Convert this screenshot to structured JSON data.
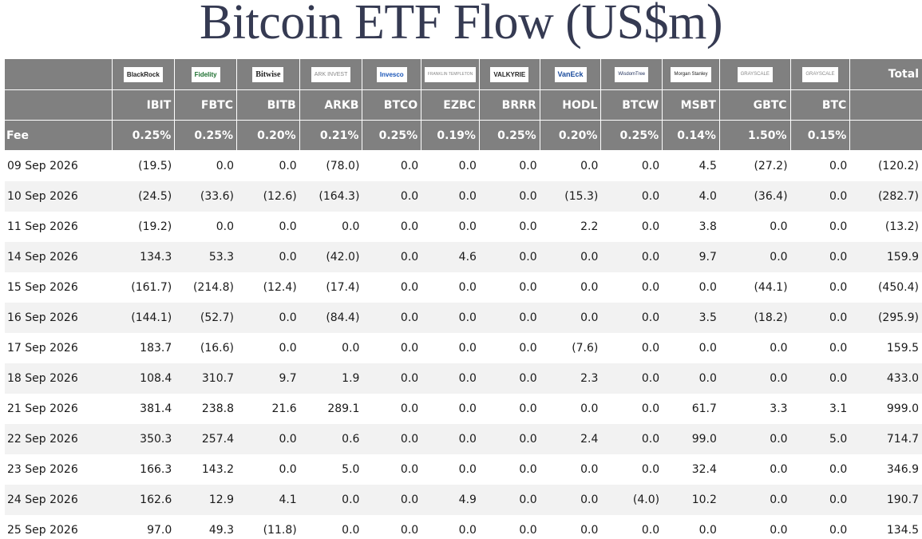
{
  "title": "Bitcoin ETF Flow (US$m)",
  "columns": [
    {
      "key": "ibit",
      "logo": "BlackRock",
      "ticker": "IBIT",
      "fee": "0.25%"
    },
    {
      "key": "fbtc",
      "logo": "Fidelity",
      "ticker": "FBTC",
      "fee": "0.25%"
    },
    {
      "key": "bitb",
      "logo": "Bitwise",
      "ticker": "BITB",
      "fee": "0.20%"
    },
    {
      "key": "arkb",
      "logo": "ARK INVEST",
      "ticker": "ARKB",
      "fee": "0.21%"
    },
    {
      "key": "btco",
      "logo": "Invesco",
      "ticker": "BTCO",
      "fee": "0.25%"
    },
    {
      "key": "ezbc",
      "logo": "FRANKLIN TEMPLETON",
      "ticker": "EZBC",
      "fee": "0.19%"
    },
    {
      "key": "brrr",
      "logo": "VALKYRIE",
      "ticker": "BRRR",
      "fee": "0.25%"
    },
    {
      "key": "hodl",
      "logo": "VanEck",
      "ticker": "HODL",
      "fee": "0.20%"
    },
    {
      "key": "btcw",
      "logo": "WisdomTree",
      "ticker": "BTCW",
      "fee": "0.25%"
    },
    {
      "key": "msbt",
      "logo": "Morgan Stanley",
      "ticker": "MSBT",
      "fee": "0.14%"
    },
    {
      "key": "gbtc",
      "logo": "GRAYSCALE",
      "ticker": "GBTC",
      "fee": "1.50%"
    },
    {
      "key": "btc",
      "logo": "GRAYSCALE",
      "ticker": "BTC",
      "fee": "0.15%"
    }
  ],
  "total_label": "Total",
  "fee_label": "Fee",
  "rows": [
    {
      "date": "09 Sep 2026",
      "values": [
        "(19.5)",
        "0.0",
        "0.0",
        "(78.0)",
        "0.0",
        "0.0",
        "0.0",
        "0.0",
        "0.0",
        "4.5",
        "(27.2)",
        "0.0"
      ],
      "total": "(120.2)"
    },
    {
      "date": "10 Sep 2026",
      "values": [
        "(24.5)",
        "(33.6)",
        "(12.6)",
        "(164.3)",
        "0.0",
        "0.0",
        "0.0",
        "(15.3)",
        "0.0",
        "4.0",
        "(36.4)",
        "0.0"
      ],
      "total": "(282.7)"
    },
    {
      "date": "11 Sep 2026",
      "values": [
        "(19.2)",
        "0.0",
        "0.0",
        "0.0",
        "0.0",
        "0.0",
        "0.0",
        "2.2",
        "0.0",
        "3.8",
        "0.0",
        "0.0"
      ],
      "total": "(13.2)"
    },
    {
      "date": "14 Sep 2026",
      "values": [
        "134.3",
        "53.3",
        "0.0",
        "(42.0)",
        "0.0",
        "4.6",
        "0.0",
        "0.0",
        "0.0",
        "9.7",
        "0.0",
        "0.0"
      ],
      "total": "159.9"
    },
    {
      "date": "15 Sep 2026",
      "values": [
        "(161.7)",
        "(214.8)",
        "(12.4)",
        "(17.4)",
        "0.0",
        "0.0",
        "0.0",
        "0.0",
        "0.0",
        "0.0",
        "(44.1)",
        "0.0"
      ],
      "total": "(450.4)"
    },
    {
      "date": "16 Sep 2026",
      "values": [
        "(144.1)",
        "(52.7)",
        "0.0",
        "(84.4)",
        "0.0",
        "0.0",
        "0.0",
        "0.0",
        "0.0",
        "3.5",
        "(18.2)",
        "0.0"
      ],
      "total": "(295.9)"
    },
    {
      "date": "17 Sep 2026",
      "values": [
        "183.7",
        "(16.6)",
        "0.0",
        "0.0",
        "0.0",
        "0.0",
        "0.0",
        "(7.6)",
        "0.0",
        "0.0",
        "0.0",
        "0.0"
      ],
      "total": "159.5"
    },
    {
      "date": "18 Sep 2026",
      "values": [
        "108.4",
        "310.7",
        "9.7",
        "1.9",
        "0.0",
        "0.0",
        "0.0",
        "2.3",
        "0.0",
        "0.0",
        "0.0",
        "0.0"
      ],
      "total": "433.0"
    },
    {
      "date": "21 Sep 2026",
      "values": [
        "381.4",
        "238.8",
        "21.6",
        "289.1",
        "0.0",
        "0.0",
        "0.0",
        "0.0",
        "0.0",
        "61.7",
        "3.3",
        "3.1"
      ],
      "total": "999.0"
    },
    {
      "date": "22 Sep 2026",
      "values": [
        "350.3",
        "257.4",
        "0.0",
        "0.6",
        "0.0",
        "0.0",
        "0.0",
        "2.4",
        "0.0",
        "99.0",
        "0.0",
        "5.0"
      ],
      "total": "714.7"
    },
    {
      "date": "23 Sep 2026",
      "values": [
        "166.3",
        "143.2",
        "0.0",
        "5.0",
        "0.0",
        "0.0",
        "0.0",
        "0.0",
        "0.0",
        "32.4",
        "0.0",
        "0.0"
      ],
      "total": "346.9"
    },
    {
      "date": "24 Sep 2026",
      "values": [
        "162.6",
        "12.9",
        "4.1",
        "0.0",
        "0.0",
        "4.9",
        "0.0",
        "0.0",
        "(4.0)",
        "10.2",
        "0.0",
        "0.0"
      ],
      "total": "190.7"
    },
    {
      "date": "25 Sep 2026",
      "values": [
        "97.0",
        "49.3",
        "(11.8)",
        "0.0",
        "0.0",
        "0.0",
        "0.0",
        "0.0",
        "0.0",
        "0.0",
        "0.0",
        "0.0"
      ],
      "total": "134.5"
    }
  ],
  "colors": {
    "header_bg": "#808080",
    "negative": "#e8121a",
    "zero": "#c2c2c2",
    "alt_row": "#f2f2f2",
    "title": "#353a52"
  }
}
